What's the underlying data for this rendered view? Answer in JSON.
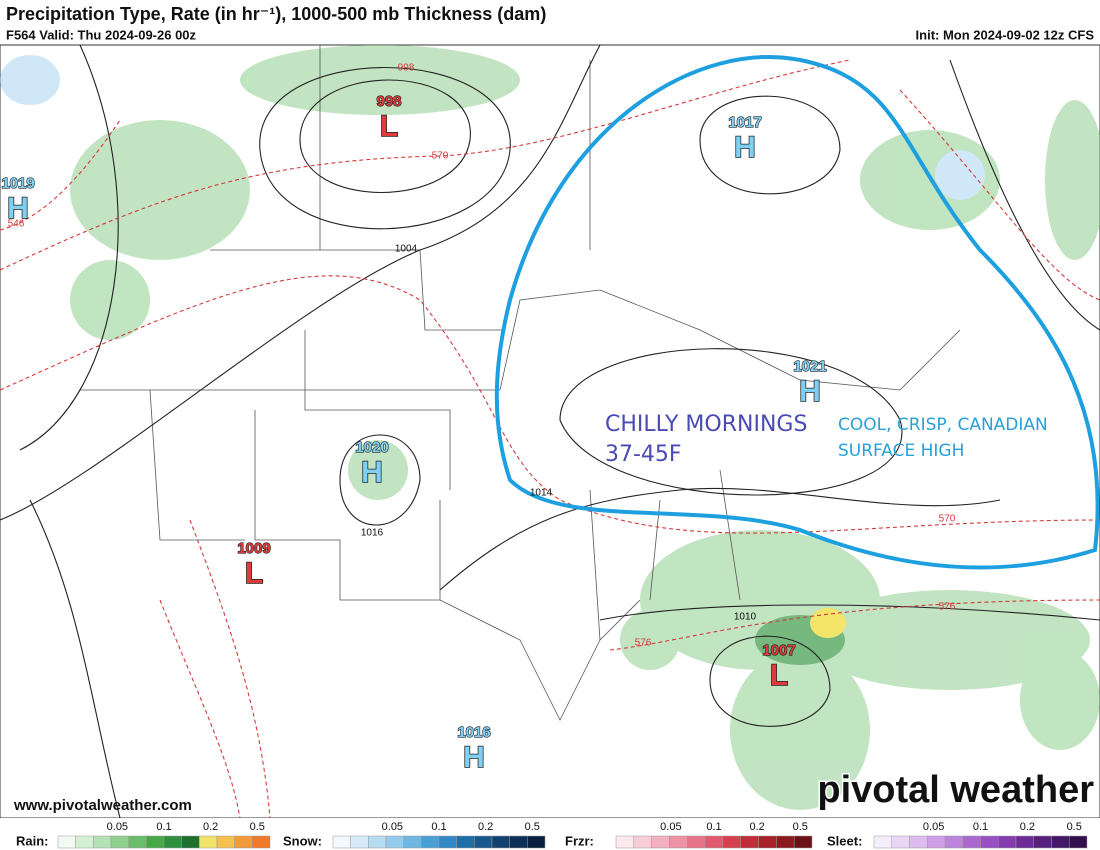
{
  "header": {
    "title": "Precipitation Type, Rate (in hr⁻¹), 1000-500 mb Thickness (dam)",
    "valid": "F564 Valid: Thu 2024-09-26 00z",
    "init": "Init: Mon 2024-09-02 12z CFS"
  },
  "pressure_centers": [
    {
      "type": "L",
      "value": 998
    },
    {
      "type": "H",
      "value": 1017
    },
    {
      "type": "H",
      "value": 1019
    },
    {
      "type": "H",
      "value": 1021
    },
    {
      "type": "H",
      "value": 1020
    },
    {
      "type": "L",
      "value": 1009
    },
    {
      "type": "L",
      "value": 1007
    },
    {
      "type": "H",
      "value": 1016
    }
  ],
  "contour_labels": [
    {
      "kind": "thickness",
      "value": 998
    },
    {
      "kind": "thickness",
      "value": 570
    },
    {
      "kind": "thickness",
      "value": 546
    },
    {
      "kind": "isobar",
      "value": 1004
    },
    {
      "kind": "isobar",
      "value": 1014
    },
    {
      "kind": "isobar",
      "value": 1016
    },
    {
      "kind": "thickness",
      "value": 570
    },
    {
      "kind": "thickness",
      "value": 576
    },
    {
      "kind": "isobar",
      "value": 1010
    },
    {
      "kind": "thickness",
      "value": 576
    }
  ],
  "annotations": [
    "CHILLY MORNINGS",
    "37-45F",
    "COOL, CRISP, CANADIAN",
    "SURFACE HIGH"
  ],
  "watermark": "pivotal weather",
  "website": "www.pivotalweather.com",
  "legend": [
    {
      "label": "Rain:",
      "ticks": [
        0.05,
        0.1,
        0.2,
        0.5
      ]
    },
    {
      "label": "Snow:",
      "ticks": [
        0.05,
        0.1,
        0.2,
        0.5
      ]
    },
    {
      "label": "Frzr:",
      "ticks": [
        0.05,
        0.1,
        0.2,
        0.5
      ]
    },
    {
      "label": "Sleet:",
      "ticks": [
        0.05,
        0.1,
        0.2,
        0.5
      ]
    }
  ]
}
